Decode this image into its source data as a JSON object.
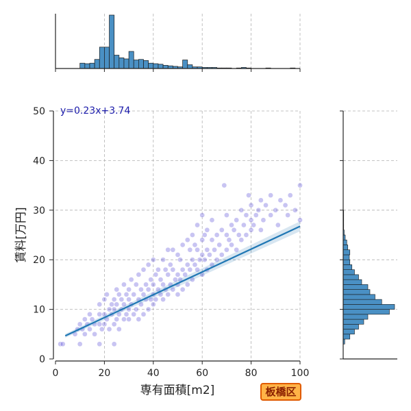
{
  "badge": "板橋区",
  "chart_data": {
    "type": "scatter",
    "title": "",
    "xlabel": "専有面積[m2]",
    "ylabel": "賃料[万円]",
    "xlim": [
      0,
      100
    ],
    "ylim": [
      0,
      50
    ],
    "xticks": [
      0,
      20,
      40,
      60,
      80,
      100
    ],
    "yticks": [
      0,
      10,
      20,
      30,
      40,
      50
    ],
    "grid": true,
    "point_color": "#3a2bd0",
    "line_color": "#1f77b4",
    "hist_color": "#4a90c4",
    "regression": {
      "equation": "y=0.23x+3.74",
      "slope": 0.23,
      "intercept": 3.74,
      "x_range": [
        4,
        100
      ]
    },
    "top_histogram": {
      "bin_edges": [
        10,
        12,
        14,
        16,
        18,
        20,
        22,
        24,
        26,
        28,
        30,
        32,
        34,
        36,
        38,
        40,
        42,
        44,
        46,
        48,
        50,
        52,
        54,
        56,
        58,
        60,
        62,
        64,
        66,
        68,
        70,
        72,
        74,
        76,
        78,
        80,
        82,
        84,
        86,
        88,
        90,
        92,
        94,
        96,
        98,
        100
      ],
      "counts": [
        10,
        9,
        10,
        17,
        40,
        40,
        100,
        25,
        20,
        18,
        32,
        16,
        17,
        15,
        10,
        9,
        8,
        6,
        5,
        4,
        3,
        16,
        7,
        3,
        3,
        2,
        2,
        2,
        1,
        1,
        1,
        0,
        1,
        2,
        1,
        0,
        0,
        0,
        1,
        0,
        0,
        0,
        0,
        1,
        0
      ]
    },
    "right_histogram": {
      "bin_edges": [
        3,
        4,
        5,
        6,
        7,
        8,
        9,
        10,
        11,
        12,
        13,
        14,
        15,
        16,
        17,
        18,
        19,
        20,
        21,
        22,
        23,
        24,
        25,
        26,
        27,
        28,
        29,
        30,
        31
      ],
      "counts": [
        3,
        13,
        22,
        30,
        40,
        48,
        90,
        100,
        75,
        62,
        52,
        48,
        36,
        30,
        22,
        17,
        13,
        12,
        13,
        9,
        7,
        4,
        2,
        1,
        1,
        1,
        1,
        0
      ]
    },
    "points": [
      [
        2,
        3
      ],
      [
        3,
        3
      ],
      [
        10,
        3
      ],
      [
        18,
        3
      ],
      [
        24,
        3
      ],
      [
        8,
        5
      ],
      [
        9,
        6
      ],
      [
        10,
        7
      ],
      [
        11,
        6
      ],
      [
        12,
        5
      ],
      [
        13,
        7
      ],
      [
        14,
        6
      ],
      [
        15,
        8
      ],
      [
        16,
        5
      ],
      [
        12,
        8
      ],
      [
        14,
        9
      ],
      [
        16,
        7
      ],
      [
        18,
        7
      ],
      [
        18,
        9
      ],
      [
        18,
        11
      ],
      [
        19,
        6
      ],
      [
        20,
        7
      ],
      [
        20,
        9
      ],
      [
        20,
        12
      ],
      [
        21,
        8
      ],
      [
        21,
        13
      ],
      [
        22,
        6
      ],
      [
        22,
        10
      ],
      [
        23,
        9
      ],
      [
        23,
        11
      ],
      [
        24,
        7
      ],
      [
        24,
        10
      ],
      [
        24,
        12
      ],
      [
        25,
        8
      ],
      [
        25,
        11
      ],
      [
        25,
        14
      ],
      [
        26,
        6
      ],
      [
        26,
        9
      ],
      [
        26,
        13
      ],
      [
        27,
        10
      ],
      [
        27,
        12
      ],
      [
        28,
        8
      ],
      [
        28,
        11
      ],
      [
        28,
        15
      ],
      [
        29,
        9
      ],
      [
        29,
        13
      ],
      [
        30,
        8
      ],
      [
        30,
        10
      ],
      [
        30,
        12
      ],
      [
        30,
        14
      ],
      [
        31,
        11
      ],
      [
        31,
        16
      ],
      [
        32,
        9
      ],
      [
        32,
        13
      ],
      [
        33,
        10
      ],
      [
        33,
        15
      ],
      [
        34,
        8
      ],
      [
        34,
        12
      ],
      [
        34,
        17
      ],
      [
        35,
        11
      ],
      [
        35,
        14
      ],
      [
        36,
        9
      ],
      [
        36,
        13
      ],
      [
        36,
        18
      ],
      [
        37,
        12
      ],
      [
        37,
        15
      ],
      [
        38,
        10
      ],
      [
        38,
        14
      ],
      [
        38,
        19
      ],
      [
        39,
        12
      ],
      [
        39,
        16
      ],
      [
        40,
        11
      ],
      [
        40,
        13
      ],
      [
        40,
        15
      ],
      [
        40,
        20
      ],
      [
        41,
        12
      ],
      [
        41,
        17
      ],
      [
        42,
        14
      ],
      [
        42,
        18
      ],
      [
        43,
        13
      ],
      [
        43,
        16
      ],
      [
        44,
        12
      ],
      [
        44,
        15
      ],
      [
        44,
        20
      ],
      [
        45,
        14
      ],
      [
        45,
        18
      ],
      [
        46,
        13
      ],
      [
        46,
        17
      ],
      [
        46,
        22
      ],
      [
        47,
        15
      ],
      [
        47,
        19
      ],
      [
        48,
        14
      ],
      [
        48,
        18
      ],
      [
        48,
        22
      ],
      [
        49,
        16
      ],
      [
        50,
        13
      ],
      [
        50,
        15
      ],
      [
        50,
        17
      ],
      [
        50,
        21
      ],
      [
        51,
        16
      ],
      [
        51,
        20
      ],
      [
        52,
        14
      ],
      [
        52,
        18
      ],
      [
        52,
        23
      ],
      [
        53,
        17
      ],
      [
        54,
        15
      ],
      [
        54,
        19
      ],
      [
        54,
        24
      ],
      [
        55,
        18
      ],
      [
        55,
        22
      ],
      [
        56,
        16
      ],
      [
        56,
        20
      ],
      [
        56,
        25
      ],
      [
        57,
        19
      ],
      [
        57,
        23
      ],
      [
        58,
        18
      ],
      [
        58,
        22
      ],
      [
        58,
        27
      ],
      [
        59,
        20
      ],
      [
        60,
        17
      ],
      [
        60,
        21
      ],
      [
        60,
        24
      ],
      [
        60,
        29
      ],
      [
        61,
        20
      ],
      [
        61,
        25
      ],
      [
        62,
        18
      ],
      [
        62,
        22
      ],
      [
        62,
        26
      ],
      [
        63,
        21
      ],
      [
        64,
        19
      ],
      [
        64,
        24
      ],
      [
        64,
        28
      ],
      [
        65,
        22
      ],
      [
        66,
        20
      ],
      [
        66,
        25
      ],
      [
        67,
        23
      ],
      [
        68,
        21
      ],
      [
        68,
        26
      ],
      [
        69,
        35
      ],
      [
        70,
        22
      ],
      [
        70,
        25
      ],
      [
        70,
        29
      ],
      [
        71,
        24
      ],
      [
        72,
        23
      ],
      [
        72,
        27
      ],
      [
        73,
        26
      ],
      [
        74,
        22
      ],
      [
        74,
        28
      ],
      [
        75,
        25
      ],
      [
        76,
        24
      ],
      [
        76,
        30
      ],
      [
        77,
        27
      ],
      [
        78,
        25
      ],
      [
        78,
        29
      ],
      [
        79,
        33
      ],
      [
        80,
        26
      ],
      [
        80,
        28
      ],
      [
        80,
        31
      ],
      [
        81,
        27
      ],
      [
        82,
        29
      ],
      [
        83,
        30
      ],
      [
        84,
        26
      ],
      [
        84,
        32
      ],
      [
        85,
        28
      ],
      [
        86,
        31
      ],
      [
        88,
        29
      ],
      [
        88,
        33
      ],
      [
        90,
        30
      ],
      [
        91,
        27
      ],
      [
        92,
        32
      ],
      [
        94,
        31
      ],
      [
        95,
        29
      ],
      [
        96,
        33
      ],
      [
        98,
        30
      ],
      [
        100,
        35
      ],
      [
        100,
        28
      ]
    ]
  }
}
